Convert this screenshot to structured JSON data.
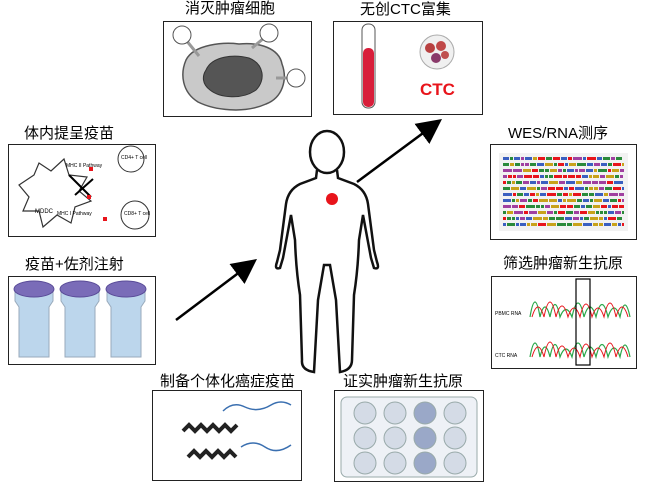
{
  "steps": {
    "kill_tumor": "消灭肿瘤细胞",
    "ctc_enrich": "无创CTC富集",
    "wes_rna": "WES/RNA测序",
    "screen_neoantigen": "筛选肿瘤新生抗原",
    "confirm_neoantigen": "证实肿瘤新生抗原",
    "prepare_vaccine": "制备个体化癌症疫苗",
    "vaccine_injection": "疫苗+佐剂注射",
    "present_vaccine": "体内提呈疫苗"
  },
  "panel_text": {
    "ctc_label": "CTC",
    "mhc2": "MHC II Pathway",
    "mhc1": "MHC I Pathway",
    "moddc": "MDDC",
    "cd4": "CD4+ T cell",
    "cd8": "CD8+ T cell",
    "pbmc_rna": "PBMC RNA",
    "ctc_rna": "CTC RNA"
  },
  "colors": {
    "tumor_dot": "#e8141b",
    "tube_red": "#d81e3a",
    "vial_cap": "#7a6cb8",
    "vial_body": "#bcd6ec",
    "plate_well": "#d4dbe6"
  }
}
